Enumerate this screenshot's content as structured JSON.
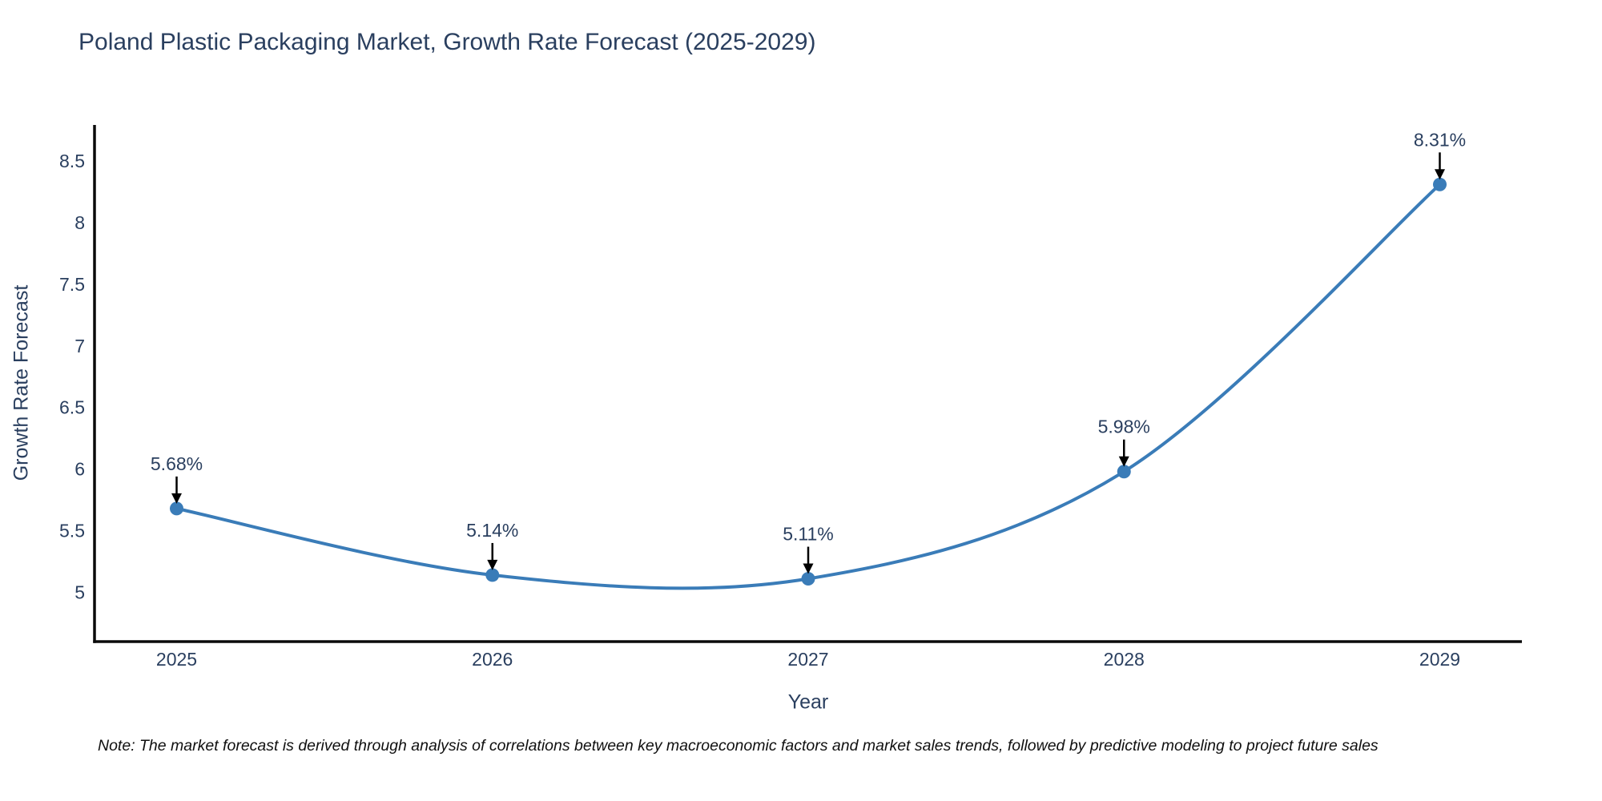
{
  "header": {
    "title": "Poland Plastic Packaging Market, Growth Rate Forecast (2025-2029)"
  },
  "footnote": {
    "text": "Note: The market forecast is derived through analysis of correlations between key macroeconomic factors and market sales trends, followed by predictive modeling to project future sales"
  },
  "chart_data": {
    "type": "line",
    "title": "Poland Plastic Packaging Market, Growth Rate Forecast (2025-2029)",
    "xlabel": "Year",
    "ylabel": "Growth Rate Forecast",
    "x": [
      2025,
      2026,
      2027,
      2028,
      2029
    ],
    "values": [
      5.68,
      5.14,
      5.11,
      5.98,
      8.31
    ],
    "point_labels": [
      "5.68%",
      "5.14%",
      "5.11%",
      "5.98%",
      "8.31%"
    ],
    "x_ticks": [
      2025,
      2026,
      2027,
      2028,
      2029
    ],
    "y_ticks": [
      5,
      5.5,
      6,
      6.5,
      7,
      7.5,
      8,
      8.5
    ],
    "xlim": [
      2024.74,
      2029.26
    ],
    "ylim": [
      4.6,
      8.78
    ],
    "grid": false,
    "legend": "none",
    "line_shape": "spline",
    "colors": {
      "line": "#3a7cb8",
      "marker": "#3a7cb8",
      "axis": "#0a0a0a",
      "tick_text": "#2a3f5f",
      "annotation_text": "#2a3f5f",
      "annotation_arrow": "#000000"
    }
  }
}
